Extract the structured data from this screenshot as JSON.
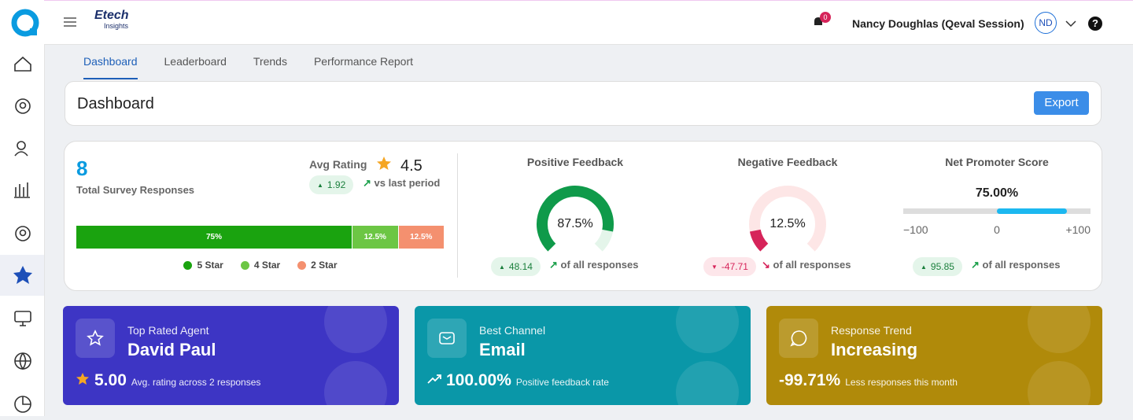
{
  "header": {
    "brand": "Etech",
    "brand_sub": "Insights",
    "notification_count": "0",
    "user": "Nancy Doughlas (Qeval Session)",
    "initials": "ND",
    "help": "?"
  },
  "tabs": [
    "Dashboard",
    "Leaderboard",
    "Trends",
    "Performance Report"
  ],
  "page_title": "Dashboard",
  "export": "Export",
  "summary": {
    "total": "8",
    "total_label": "Total Survey Responses",
    "avg_label": "Avg Rating",
    "avg": "4.5",
    "avg_change": "1.92",
    "avg_change_label": "vs last period",
    "rating_bar": [
      {
        "name": "5 Star",
        "value": 75,
        "value_label": "75%",
        "color": "#1aa30f"
      },
      {
        "name": "4 Star",
        "value": 12.5,
        "value_label": "12.5%",
        "color": "#6cc644"
      },
      {
        "name": "2 Star",
        "value": 12.5,
        "value_label": "12.5%",
        "color": "#f4906f"
      }
    ]
  },
  "gauges": [
    {
      "title": "Positive Feedback",
      "value": 87.5,
      "value_label": "87.5%",
      "color": "#0f9a4a",
      "track": "#e4f5ea",
      "change": "48.14",
      "change_label": "of all responses",
      "direction": "up"
    },
    {
      "title": "Negative Feedback",
      "value": 12.5,
      "value_label": "12.5%",
      "color": "#d6245a",
      "track": "#fde6e6",
      "change": "-47.71",
      "change_label": "of all responses",
      "direction": "down"
    }
  ],
  "nps": {
    "title": "Net Promoter Score",
    "value": 75,
    "value_label": "75.00%",
    "range": [
      -100,
      100
    ],
    "ticks": [
      {
        "value": -100,
        "label": "−100"
      },
      {
        "value": 0,
        "label": "0"
      },
      {
        "value": 100,
        "label": "+100"
      }
    ],
    "color": "#1cb8f0",
    "change": "95.85",
    "change_label": "of all responses",
    "direction": "up"
  },
  "cards": [
    {
      "subtitle": "Top Rated Agent",
      "title": "David Paul",
      "metric": "5.00",
      "metric_label": "Avg. rating across 2 responses",
      "color": "#3d35c4"
    },
    {
      "subtitle": "Best Channel",
      "title": "Email",
      "metric": "100.00%",
      "metric_label": "Positive feedback rate",
      "color": "#0a97a8"
    },
    {
      "subtitle": "Response Trend",
      "title": "Increasing",
      "metric": "-99.71%",
      "metric_label": "Less responses this month",
      "color": "#b08a0a"
    }
  ]
}
